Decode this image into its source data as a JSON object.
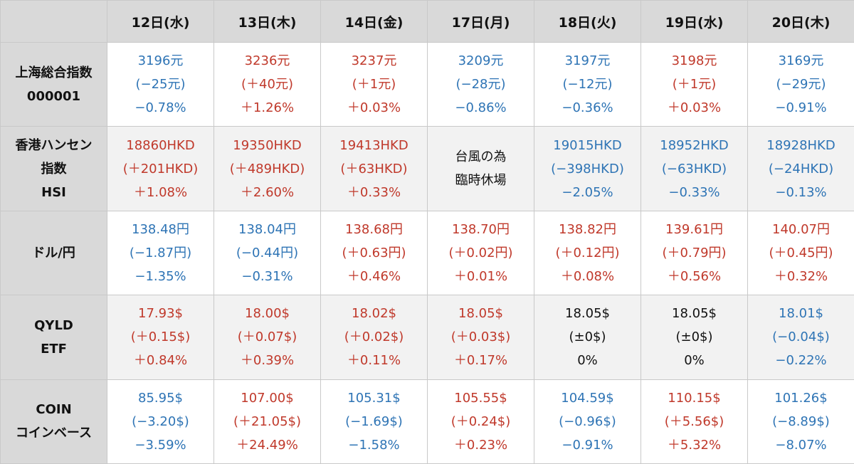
{
  "header": {
    "corner": "",
    "days": [
      "12日(水)",
      "13日(木)",
      "14日(金)",
      "17日(月)",
      "18日(火)",
      "19日(水)",
      "20日(木)"
    ]
  },
  "colors": {
    "up": "#c0392b",
    "down": "#2e74b5",
    "flat": "#111111",
    "header_bg": "#d9d9d9",
    "band_bg": "#f2f2f2"
  },
  "rows": [
    {
      "label": [
        "上海総合指数",
        "000001"
      ],
      "cells": [
        {
          "trend": "down",
          "lines": [
            "3196元",
            "(−25元)",
            "−0.78%"
          ]
        },
        {
          "trend": "up",
          "lines": [
            "3236元",
            "(＋40元)",
            "＋1.26%"
          ]
        },
        {
          "trend": "up",
          "lines": [
            "3237元",
            "(＋1元)",
            "＋0.03%"
          ]
        },
        {
          "trend": "down",
          "lines": [
            "3209元",
            "(−28元)",
            "−0.86%"
          ]
        },
        {
          "trend": "down",
          "lines": [
            "3197元",
            "(−12元)",
            "−0.36%"
          ]
        },
        {
          "trend": "up",
          "lines": [
            "3198元",
            "(＋1元)",
            "＋0.03%"
          ]
        },
        {
          "trend": "down",
          "lines": [
            "3169元",
            "(−29元)",
            "−0.91%"
          ]
        }
      ]
    },
    {
      "label": [
        "香港ハンセン",
        "指数",
        "HSI"
      ],
      "cells": [
        {
          "trend": "up",
          "lines": [
            "18860HKD",
            "(＋201HKD)",
            "＋1.08%"
          ]
        },
        {
          "trend": "up",
          "lines": [
            "19350HKD",
            "(＋489HKD)",
            "＋2.60%"
          ]
        },
        {
          "trend": "up",
          "lines": [
            "19413HKD",
            "(＋63HKD)",
            "＋0.33%"
          ]
        },
        {
          "trend": "note",
          "lines": [
            "台風の為",
            "臨時休場"
          ]
        },
        {
          "trend": "down",
          "lines": [
            "19015HKD",
            "(−398HKD)",
            "−2.05%"
          ]
        },
        {
          "trend": "down",
          "lines": [
            "18952HKD",
            "(−63HKD)",
            "−0.33%"
          ]
        },
        {
          "trend": "down",
          "lines": [
            "18928HKD",
            "(−24HKD)",
            "−0.13%"
          ]
        }
      ]
    },
    {
      "label": [
        "ドル/円"
      ],
      "cells": [
        {
          "trend": "down",
          "lines": [
            "138.48円",
            "(−1.87円)",
            "−1.35%"
          ]
        },
        {
          "trend": "down",
          "lines": [
            "138.04円",
            "(−0.44円)",
            "−0.31%"
          ]
        },
        {
          "trend": "up",
          "lines": [
            "138.68円",
            "(＋0.63円)",
            "＋0.46%"
          ]
        },
        {
          "trend": "up",
          "lines": [
            "138.70円",
            "(＋0.02円)",
            "＋0.01%"
          ]
        },
        {
          "trend": "up",
          "lines": [
            "138.82円",
            "(＋0.12円)",
            "＋0.08%"
          ]
        },
        {
          "trend": "up",
          "lines": [
            "139.61円",
            "(＋0.79円)",
            "＋0.56%"
          ]
        },
        {
          "trend": "up",
          "lines": [
            "140.07円",
            "(＋0.45円)",
            "＋0.32%"
          ]
        }
      ]
    },
    {
      "label": [
        "QYLD",
        "ETF"
      ],
      "cells": [
        {
          "trend": "up",
          "lines": [
            "17.93$",
            "(＋0.15$)",
            "＋0.84%"
          ]
        },
        {
          "trend": "up",
          "lines": [
            "18.00$",
            "(＋0.07$)",
            "＋0.39%"
          ]
        },
        {
          "trend": "up",
          "lines": [
            "18.02$",
            "(＋0.02$)",
            "＋0.11%"
          ]
        },
        {
          "trend": "up",
          "lines": [
            "18.05$",
            "(＋0.03$)",
            "＋0.17%"
          ]
        },
        {
          "trend": "flat",
          "lines": [
            "18.05$",
            "(±0$)",
            "0%"
          ]
        },
        {
          "trend": "flat",
          "lines": [
            "18.05$",
            "(±0$)",
            "0%"
          ]
        },
        {
          "trend": "down",
          "lines": [
            "18.01$",
            "(−0.04$)",
            "−0.22%"
          ]
        }
      ]
    },
    {
      "label": [
        "COIN",
        "コインベース"
      ],
      "cells": [
        {
          "trend": "down",
          "lines": [
            "85.95$",
            "(−3.20$)",
            "−3.59%"
          ]
        },
        {
          "trend": "up",
          "lines": [
            "107.00$",
            "(＋21.05$)",
            "＋24.49%"
          ]
        },
        {
          "trend": "down",
          "lines": [
            "105.31$",
            "(−1.69$)",
            "−1.58%"
          ]
        },
        {
          "trend": "up",
          "lines": [
            "105.55$",
            "(＋0.24$)",
            "＋0.23%"
          ]
        },
        {
          "trend": "down",
          "lines": [
            "104.59$",
            "(−0.96$)",
            "−0.91%"
          ]
        },
        {
          "trend": "up",
          "lines": [
            "110.15$",
            "(＋5.56$)",
            "＋5.32%"
          ]
        },
        {
          "trend": "down",
          "lines": [
            "101.26$",
            "(−8.89$)",
            "−8.07%"
          ]
        }
      ]
    }
  ]
}
